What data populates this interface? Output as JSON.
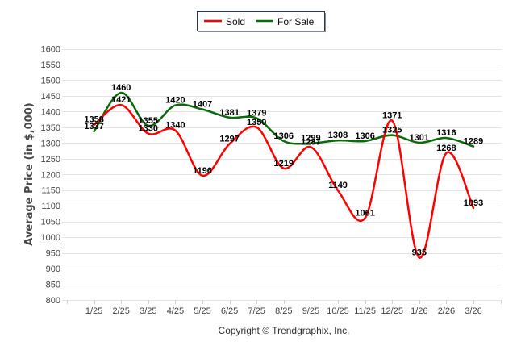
{
  "chart_data": {
    "type": "line",
    "title": "",
    "xlabel": "",
    "ylabel": "Average Price (in $,000)",
    "categories": [
      "1/25",
      "2/25",
      "3/25",
      "4/25",
      "5/25",
      "6/25",
      "7/25",
      "8/25",
      "9/25",
      "10/25",
      "11/25",
      "12/25",
      "1/26",
      "2/26",
      "3/26"
    ],
    "series": [
      {
        "name": "Sold",
        "color": "#ff0000",
        "values": [
          1358,
          1421,
          1330,
          1340,
          1196,
          1297,
          1350,
          1219,
          1287,
          1149,
          1061,
          1371,
          935,
          1268,
          1093
        ]
      },
      {
        "name": "For Sale",
        "color": "#0b6b0b",
        "values": [
          1337,
          1460,
          1355,
          1420,
          1407,
          1381,
          1379,
          1306,
          1299,
          1308,
          1306,
          1325,
          1301,
          1316,
          1289
        ]
      }
    ],
    "ylim": [
      800,
      1600
    ],
    "yticks": [
      800,
      850,
      900,
      950,
      1000,
      1050,
      1100,
      1150,
      1200,
      1250,
      1300,
      1350,
      1400,
      1450,
      1500,
      1550,
      1600
    ],
    "grid": true,
    "smooth": true,
    "data_labels": true,
    "legend": {
      "position": "top-center",
      "entries": [
        "Sold",
        "For Sale"
      ]
    }
  },
  "footer": {
    "copyright": "Copyright © Trendgraphix, Inc."
  }
}
